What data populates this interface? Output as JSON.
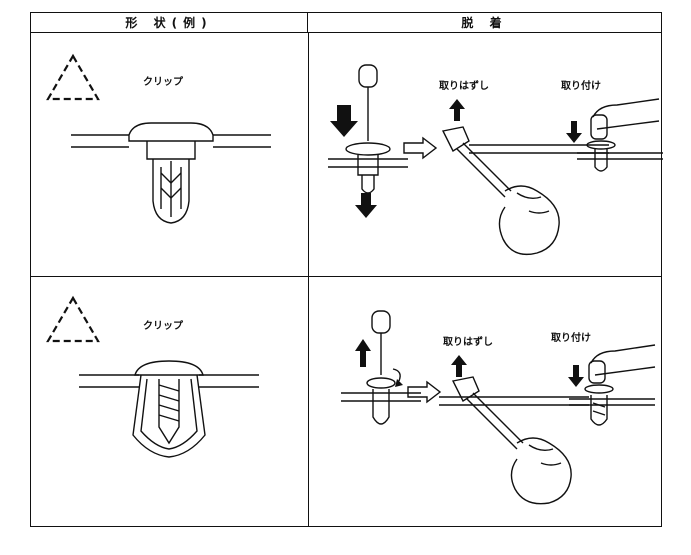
{
  "header": {
    "shape_label": "形 状(例)",
    "detach_label": "脱 着"
  },
  "rows": [
    {
      "clip_label": "クリップ",
      "remove_label": "取りはずし",
      "install_label": "取り付け"
    },
    {
      "clip_label": "クリップ",
      "remove_label": "取りはずし",
      "install_label": "取り付け"
    }
  ]
}
